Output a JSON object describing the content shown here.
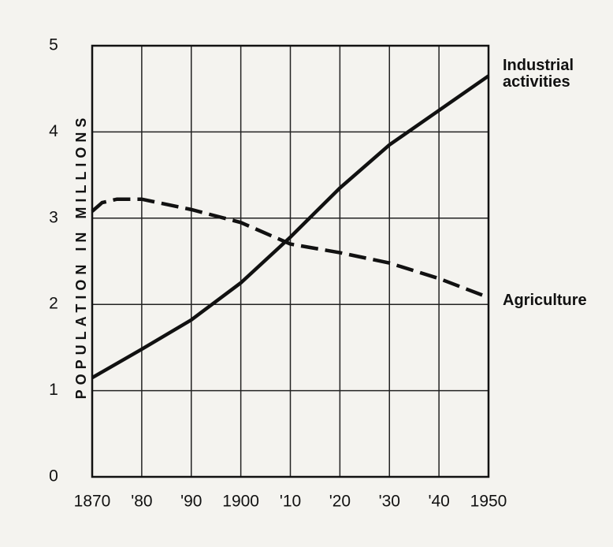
{
  "chart_data": {
    "type": "line",
    "ylabel": "POPULATION IN MILLIONS",
    "series": [
      {
        "name": "Industrial activities",
        "color": "#111111",
        "dash": false,
        "x": [
          1870,
          1880,
          1890,
          1900,
          1910,
          1920,
          1930,
          1940,
          1950
        ],
        "values": [
          1.15,
          1.48,
          1.82,
          2.25,
          2.78,
          3.35,
          3.85,
          4.25,
          4.65
        ]
      },
      {
        "name": "Agriculture",
        "color": "#111111",
        "dash": true,
        "x": [
          1870,
          1872,
          1875,
          1880,
          1890,
          1900,
          1910,
          1920,
          1930,
          1940,
          1950
        ],
        "values": [
          3.08,
          3.18,
          3.22,
          3.22,
          3.1,
          2.95,
          2.7,
          2.6,
          2.48,
          2.3,
          2.08
        ]
      }
    ],
    "xlim": [
      1870,
      1950
    ],
    "xticks": [
      1870,
      {
        "value": 1880,
        "label": "'80"
      },
      {
        "value": 1890,
        "label": "'90"
      },
      1900,
      {
        "value": 1910,
        "label": "'10"
      },
      {
        "value": 1920,
        "label": "'20"
      },
      {
        "value": 1930,
        "label": "'30"
      },
      {
        "value": 1940,
        "label": "'40"
      },
      1950
    ],
    "ylim": [
      0,
      5
    ],
    "yticks": [
      0,
      1,
      2,
      3,
      4,
      5
    ],
    "grid": true
  }
}
